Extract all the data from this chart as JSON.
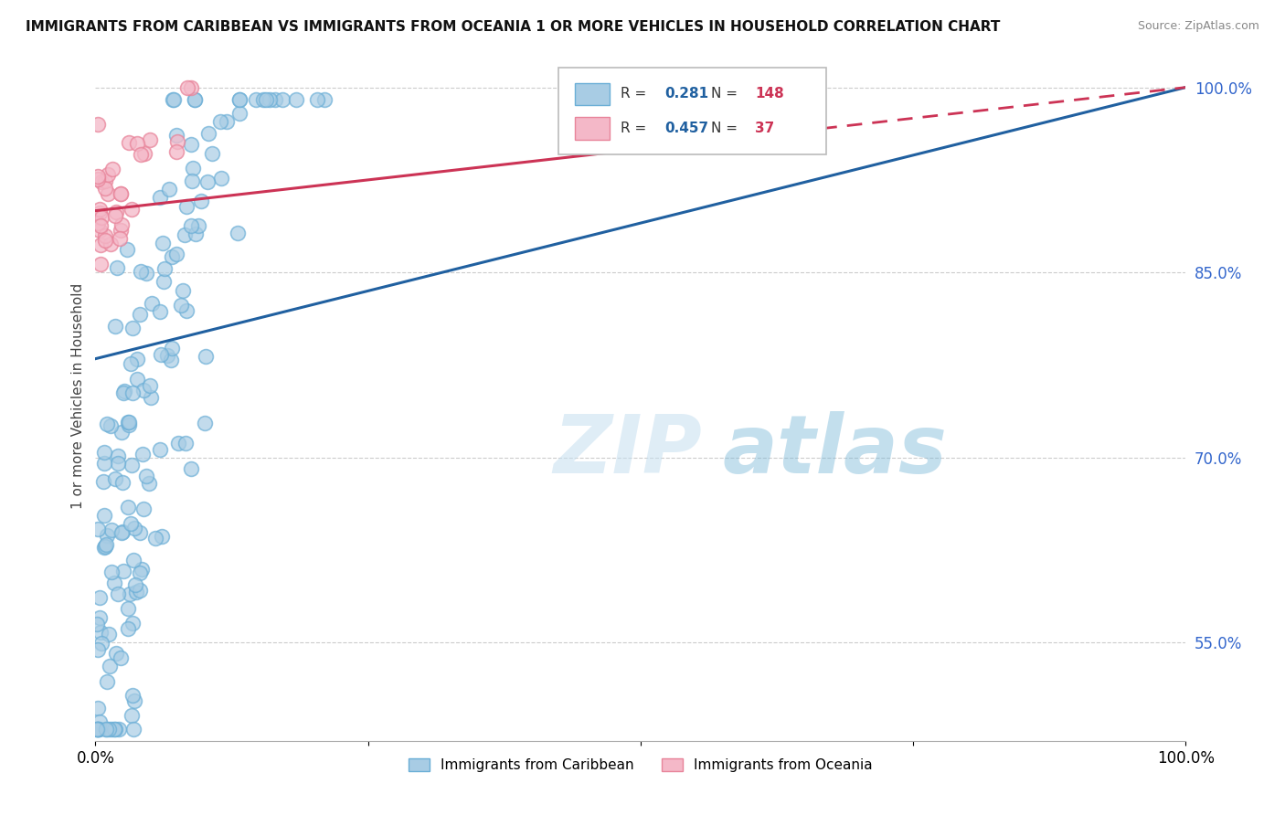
{
  "title": "IMMIGRANTS FROM CARIBBEAN VS IMMIGRANTS FROM OCEANIA 1 OR MORE VEHICLES IN HOUSEHOLD CORRELATION CHART",
  "source": "Source: ZipAtlas.com",
  "ylabel": "1 or more Vehicles in Household",
  "xlim": [
    0.0,
    1.0
  ],
  "ylim": [
    0.47,
    1.03
  ],
  "yticks": [
    0.55,
    0.7,
    0.85,
    1.0
  ],
  "ytick_labels": [
    "55.0%",
    "70.0%",
    "85.0%",
    "100.0%"
  ],
  "caribbean_R": 0.281,
  "caribbean_N": 148,
  "oceania_R": 0.457,
  "oceania_N": 37,
  "blue_scatter_color": "#a8cce4",
  "blue_edge_color": "#6aaed6",
  "pink_scatter_color": "#f4b8c8",
  "pink_edge_color": "#e8849a",
  "blue_line_color": "#2060a0",
  "pink_line_color": "#cc3355",
  "watermark_color": "#d0e8f5",
  "background_color": "#ffffff",
  "grid_color": "#cccccc",
  "tick_color": "#3366cc",
  "watermark": "ZIPatlas"
}
